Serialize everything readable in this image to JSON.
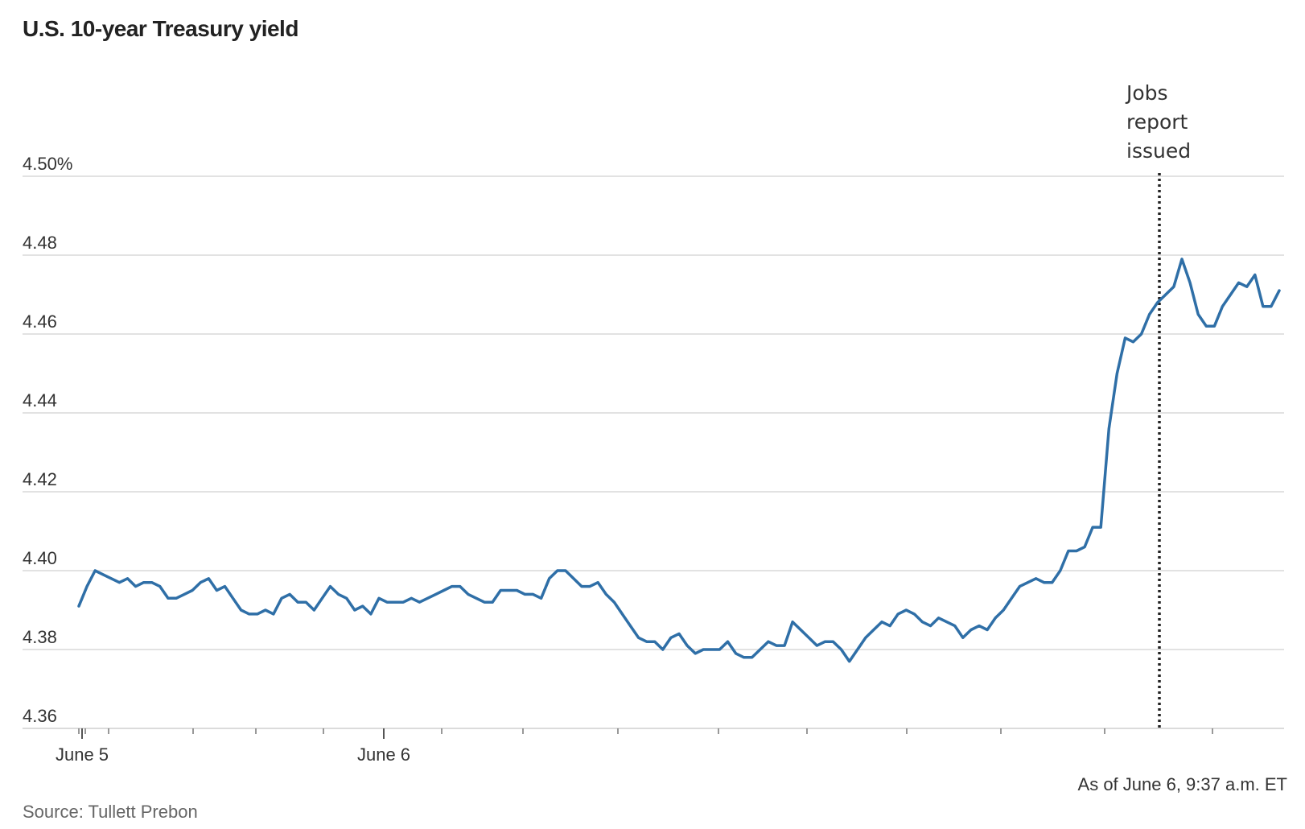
{
  "title": "U.S. 10-year Treasury yield",
  "note": "As of June 6, 9:37 a.m. ET",
  "source": "Source: Tullett Prebon",
  "chart_data": {
    "type": "line",
    "title": "U.S. 10-year Treasury yield",
    "xlabel": "",
    "ylabel": "",
    "x_tick_labels": [
      "June 5",
      "June 6"
    ],
    "y_ticks": [
      {
        "value": 4.36,
        "label": "4.36"
      },
      {
        "value": 4.38,
        "label": "4.38"
      },
      {
        "value": 4.4,
        "label": "4.40"
      },
      {
        "value": 4.42,
        "label": "4.42"
      },
      {
        "value": 4.44,
        "label": "4.44"
      },
      {
        "value": 4.46,
        "label": "4.46"
      },
      {
        "value": 4.48,
        "label": "4.48"
      },
      {
        "value": 4.5,
        "label": "4.50%"
      }
    ],
    "ylim": [
      4.36,
      4.5
    ],
    "grid": true,
    "line_color": "#2f6fa7",
    "annotation": {
      "label": [
        "Jobs",
        "report",
        "issued"
      ]
    },
    "series": [
      {
        "values": [
          4.391,
          4.396,
          4.4,
          4.399,
          4.398,
          4.397,
          4.398,
          4.396,
          4.397,
          4.397,
          4.396,
          4.393,
          4.393,
          4.394,
          4.395,
          4.397,
          4.398,
          4.395,
          4.396,
          4.393,
          4.39,
          4.389,
          4.389,
          4.39,
          4.389,
          4.393,
          4.394,
          4.392,
          4.392,
          4.39,
          4.393,
          4.396,
          4.394,
          4.393,
          4.39,
          4.391,
          4.389,
          4.393,
          4.392,
          4.392,
          4.392,
          4.393,
          4.392,
          4.393,
          4.394,
          4.395,
          4.396,
          4.396,
          4.394,
          4.393,
          4.392,
          4.392,
          4.395,
          4.395,
          4.395,
          4.394,
          4.394,
          4.393,
          4.398,
          4.4,
          4.4,
          4.398,
          4.396,
          4.396,
          4.397,
          4.394,
          4.392,
          4.389,
          4.386,
          4.383,
          4.382,
          4.382,
          4.38,
          4.383,
          4.384,
          4.381,
          4.379,
          4.38,
          4.38,
          4.38,
          4.382,
          4.379,
          4.378,
          4.378,
          4.38,
          4.382,
          4.381,
          4.381,
          4.387,
          4.385,
          4.383,
          4.381,
          4.382,
          4.382,
          4.38,
          4.377,
          4.38,
          4.383,
          4.385,
          4.387,
          4.386,
          4.389,
          4.39,
          4.389,
          4.387,
          4.386,
          4.388,
          4.387,
          4.386,
          4.383,
          4.385,
          4.386,
          4.385,
          4.388,
          4.39,
          4.393,
          4.396,
          4.397,
          4.398,
          4.397,
          4.397,
          4.4,
          4.405,
          4.405,
          4.406,
          4.411,
          4.411,
          4.436,
          4.45,
          4.459,
          4.458,
          4.46,
          4.465,
          4.468,
          4.47,
          4.472,
          4.479,
          4.473,
          4.465,
          4.462,
          4.462,
          4.467,
          4.47,
          4.473,
          4.472,
          4.475,
          4.467,
          4.467,
          4.471
        ]
      }
    ]
  }
}
